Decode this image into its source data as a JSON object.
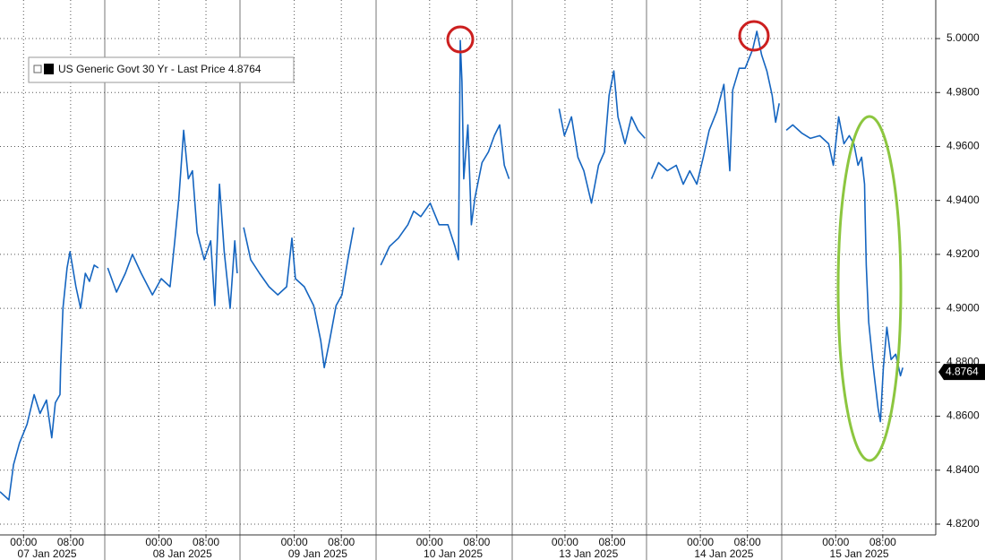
{
  "chart_data": {
    "type": "line",
    "legend_label": "US Generic Govt 30 Yr - Last Price 4.8764",
    "last_price": 4.8764,
    "x": [
      0,
      1.5,
      2.3,
      3.3,
      4.6,
      5.8,
      6.8,
      7.9,
      8.8,
      9.4,
      10.2,
      10.3,
      10.7,
      11.4,
      11.9,
      12.9,
      13.7,
      14.5,
      15.2,
      16.0,
      16.7,
      null,
      18.3,
      19.8,
      21.3,
      22.5,
      24.0,
      25.9,
      27.4,
      28.9,
      29.7,
      30.4,
      31.2,
      32.0,
      32.7,
      33.5,
      34.7,
      35.8,
      36.5,
      37.3,
      38.1,
      39.1,
      39.9,
      40.3,
      null,
      41.4,
      42.6,
      44.1,
      45.7,
      47.2,
      48.7,
      49.6,
      50.2,
      51.7,
      53.3,
      54.5,
      55.1,
      56.0,
      57.1,
      58.1,
      59.1,
      60.1,
      null,
      64.7,
      66.2,
      67.7,
      69.3,
      70.3,
      71.5,
      73.1,
      74.6,
      76.1,
      77.3,
      77.9,
      78.2,
      78.5,
      78.8,
      79.5,
      80.1,
      80.7,
      81.9,
      83.0,
      84.0,
      84.9,
      85.7,
      86.5,
      null,
      95.0,
      95.9,
      97.1,
      98.2,
      99.2,
      100.5,
      101.7,
      102.7,
      103.5,
      104.3,
      105.0,
      106.2,
      107.3,
      108.4,
      109.6,
      null,
      110.7,
      111.9,
      113.4,
      114.9,
      116.1,
      117.2,
      118.4,
      119.5,
      120.5,
      121.8,
      123.0,
      124.0,
      124.5,
      125.6,
      126.6,
      127.9,
      128.6,
      129.4,
      130.3,
      131.2,
      131.8,
      132.4,
      null,
      133.6,
      134.7,
      136.2,
      137.7,
      139.3,
      140.8,
      141.6,
      142.5,
      143.4,
      144.3,
      145.1,
      145.8,
      146.4,
      146.9,
      147.0,
      147.2,
      147.6,
      148.4,
      149.2,
      149.6,
      150.1,
      150.7,
      151.4,
      152.2,
      153.0,
      153.4
    ],
    "series": [
      {
        "name": "US Generic Govt 30 Yr - Last Price 4.8764",
        "color": "#1565c0",
        "values": [
          4.832,
          4.829,
          4.842,
          4.85,
          4.857,
          4.868,
          4.861,
          4.866,
          4.852,
          4.865,
          4.868,
          4.878,
          4.9,
          4.915,
          4.921,
          4.908,
          4.9,
          4.913,
          4.91,
          4.916,
          4.915,
          null,
          4.915,
          4.906,
          4.913,
          4.92,
          4.913,
          4.905,
          4.911,
          4.908,
          4.925,
          4.941,
          4.966,
          4.948,
          4.951,
          4.928,
          4.918,
          4.925,
          4.901,
          4.946,
          4.921,
          4.9,
          4.925,
          4.913,
          null,
          4.93,
          4.918,
          4.913,
          4.908,
          4.905,
          4.908,
          4.926,
          4.911,
          4.908,
          4.901,
          4.888,
          4.878,
          4.888,
          4.901,
          4.905,
          4.918,
          4.93,
          null,
          4.916,
          4.923,
          4.926,
          4.931,
          4.936,
          4.934,
          4.939,
          4.931,
          4.931,
          4.923,
          4.918,
          4.9993,
          4.984,
          4.948,
          4.968,
          4.931,
          4.941,
          4.954,
          4.958,
          4.964,
          4.968,
          4.953,
          4.948,
          null,
          4.974,
          4.964,
          4.971,
          4.956,
          4.951,
          4.939,
          4.953,
          4.958,
          4.979,
          4.988,
          4.971,
          4.961,
          4.971,
          4.966,
          4.963,
          null,
          4.948,
          4.954,
          4.951,
          4.953,
          4.946,
          4.951,
          4.946,
          4.956,
          4.966,
          4.973,
          4.983,
          4.951,
          4.981,
          4.989,
          4.989,
          4.996,
          5.0027,
          4.994,
          4.988,
          4.979,
          4.969,
          4.976,
          null,
          4.966,
          4.968,
          4.965,
          4.963,
          4.964,
          4.961,
          4.953,
          4.971,
          4.961,
          4.964,
          4.961,
          4.953,
          4.956,
          4.946,
          4.935,
          4.916,
          4.895,
          4.878,
          4.863,
          4.858,
          4.878,
          4.893,
          4.881,
          4.883,
          4.875,
          4.878
        ]
      }
    ],
    "xlim": [
      0,
      159
    ],
    "xticks": [
      {
        "value": 4,
        "label": "00:00"
      },
      {
        "value": 12,
        "label": "08:00"
      },
      {
        "value": 27,
        "label": "00:00"
      },
      {
        "value": 35,
        "label": "08:00"
      },
      {
        "value": 50,
        "label": "00:00"
      },
      {
        "value": 58,
        "label": "08:00"
      },
      {
        "value": 73,
        "label": "00:00"
      },
      {
        "value": 81,
        "label": "08:00"
      },
      {
        "value": 96,
        "label": "00:00"
      },
      {
        "value": 104,
        "label": "08:00"
      },
      {
        "value": 119,
        "label": "00:00"
      },
      {
        "value": 127,
        "label": "08:00"
      },
      {
        "value": 142,
        "label": "00:00"
      },
      {
        "value": 150,
        "label": "08:00"
      }
    ],
    "x_dates": [
      "07 Jan 2025",
      "08 Jan 2025",
      "09 Jan 2025",
      "10 Jan 2025",
      "13 Jan 2025",
      "14 Jan 2025",
      "15 Jan 2025"
    ],
    "ylim": [
      4.816,
      5.0143
    ],
    "yticks": [
      {
        "value": 4.82,
        "label": "4.8200"
      },
      {
        "value": 4.84,
        "label": "4.8400"
      },
      {
        "value": 4.86,
        "label": "4.8600"
      },
      {
        "value": 4.88,
        "label": "4.8800"
      },
      {
        "value": 4.9,
        "label": "4.9000"
      },
      {
        "value": 4.92,
        "label": "4.9200"
      },
      {
        "value": 4.94,
        "label": "4.9400"
      },
      {
        "value": 4.96,
        "label": "4.9600"
      },
      {
        "value": 4.98,
        "label": "4.9800"
      },
      {
        "value": 5.0,
        "label": "5.0000"
      }
    ],
    "grid": true
  }
}
